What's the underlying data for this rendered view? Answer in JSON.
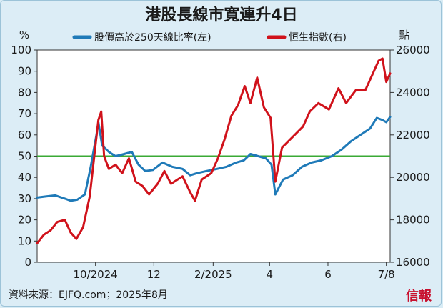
{
  "chart_data": {
    "type": "line",
    "title": "港股長線市寬連升4日",
    "source": "資料來源：EJFQ.com；2025年8月",
    "logo": "信報",
    "left_unit": "%",
    "right_unit": "點",
    "left_axis": {
      "min": 0,
      "max": 100,
      "ticks": [
        0,
        10,
        20,
        30,
        40,
        50,
        60,
        70,
        80,
        90,
        100
      ]
    },
    "right_axis": {
      "min": 16000,
      "max": 26000,
      "ticks": [
        16000,
        18000,
        20000,
        22000,
        24000,
        26000
      ]
    },
    "x_range": [
      "2024-08-01",
      "2025-08-05"
    ],
    "x_ticks": [
      {
        "date": "2024-10-01",
        "label": "10/2024"
      },
      {
        "date": "2024-12-01",
        "label": "12"
      },
      {
        "date": "2025-02-01",
        "label": "2/2025"
      },
      {
        "date": "2025-04-01",
        "label": "4"
      },
      {
        "date": "2025-06-01",
        "label": "6"
      },
      {
        "date": "2025-08-01",
        "label": "7/8"
      }
    ],
    "reference_line": {
      "value": 50,
      "axis": "left",
      "color": "#3aaa35"
    },
    "series": [
      {
        "name": "股價高於250天線比率(左)",
        "axis": "left",
        "color": "#1f7ab8",
        "points": [
          [
            "2024-08-01",
            30.5
          ],
          [
            "2024-08-10",
            31
          ],
          [
            "2024-08-20",
            31.5
          ],
          [
            "2024-08-30",
            30
          ],
          [
            "2024-09-05",
            29
          ],
          [
            "2024-09-12",
            29.5
          ],
          [
            "2024-09-20",
            32
          ],
          [
            "2024-09-26",
            45
          ],
          [
            "2024-10-02",
            60
          ],
          [
            "2024-10-04",
            66
          ],
          [
            "2024-10-08",
            55
          ],
          [
            "2024-10-15",
            52
          ],
          [
            "2024-10-22",
            50
          ],
          [
            "2024-10-31",
            51
          ],
          [
            "2024-11-08",
            52
          ],
          [
            "2024-11-15",
            46
          ],
          [
            "2024-11-22",
            43
          ],
          [
            "2024-11-30",
            43.5
          ],
          [
            "2024-12-10",
            47
          ],
          [
            "2024-12-20",
            45
          ],
          [
            "2024-12-31",
            44
          ],
          [
            "2025-01-08",
            41
          ],
          [
            "2025-01-15",
            42
          ],
          [
            "2025-01-25",
            43
          ],
          [
            "2025-02-05",
            44
          ],
          [
            "2025-02-15",
            45
          ],
          [
            "2025-02-25",
            47
          ],
          [
            "2025-03-05",
            48
          ],
          [
            "2025-03-12",
            51
          ],
          [
            "2025-03-20",
            50
          ],
          [
            "2025-03-28",
            49
          ],
          [
            "2025-04-03",
            46
          ],
          [
            "2025-04-07",
            32
          ],
          [
            "2025-04-15",
            39
          ],
          [
            "2025-04-25",
            41
          ],
          [
            "2025-05-05",
            45
          ],
          [
            "2025-05-15",
            47
          ],
          [
            "2025-05-25",
            48
          ],
          [
            "2025-06-05",
            50
          ],
          [
            "2025-06-15",
            53
          ],
          [
            "2025-06-25",
            57
          ],
          [
            "2025-07-05",
            60
          ],
          [
            "2025-07-15",
            63
          ],
          [
            "2025-07-22",
            68
          ],
          [
            "2025-07-28",
            67
          ],
          [
            "2025-08-01",
            66
          ],
          [
            "2025-08-05",
            68.5
          ]
        ]
      },
      {
        "name": "恒生指數(右)",
        "axis": "right",
        "color": "#d0121b",
        "points": [
          [
            "2024-08-01",
            16900
          ],
          [
            "2024-08-08",
            17300
          ],
          [
            "2024-08-15",
            17500
          ],
          [
            "2024-08-22",
            17900
          ],
          [
            "2024-08-30",
            18000
          ],
          [
            "2024-09-05",
            17400
          ],
          [
            "2024-09-11",
            17100
          ],
          [
            "2024-09-18",
            17650
          ],
          [
            "2024-09-25",
            19100
          ],
          [
            "2024-09-30",
            21100
          ],
          [
            "2024-10-04",
            22700
          ],
          [
            "2024-10-07",
            23100
          ],
          [
            "2024-10-10",
            21000
          ],
          [
            "2024-10-15",
            20400
          ],
          [
            "2024-10-22",
            20600
          ],
          [
            "2024-10-29",
            20200
          ],
          [
            "2024-11-05",
            20900
          ],
          [
            "2024-11-12",
            19800
          ],
          [
            "2024-11-19",
            19600
          ],
          [
            "2024-11-26",
            19200
          ],
          [
            "2024-12-05",
            19700
          ],
          [
            "2024-12-12",
            20300
          ],
          [
            "2024-12-19",
            19700
          ],
          [
            "2024-12-31",
            20050
          ],
          [
            "2025-01-08",
            19300
          ],
          [
            "2025-01-13",
            18900
          ],
          [
            "2025-01-20",
            19900
          ],
          [
            "2025-01-30",
            20200
          ],
          [
            "2025-02-06",
            20900
          ],
          [
            "2025-02-13",
            21800
          ],
          [
            "2025-02-20",
            22900
          ],
          [
            "2025-02-27",
            23400
          ],
          [
            "2025-03-06",
            24300
          ],
          [
            "2025-03-12",
            23500
          ],
          [
            "2025-03-19",
            24700
          ],
          [
            "2025-03-26",
            23300
          ],
          [
            "2025-04-02",
            22800
          ],
          [
            "2025-04-07",
            19800
          ],
          [
            "2025-04-14",
            21400
          ],
          [
            "2025-04-25",
            21900
          ],
          [
            "2025-05-06",
            22400
          ],
          [
            "2025-05-13",
            23100
          ],
          [
            "2025-05-22",
            23500
          ],
          [
            "2025-06-02",
            23200
          ],
          [
            "2025-06-12",
            24200
          ],
          [
            "2025-06-20",
            23500
          ],
          [
            "2025-06-30",
            24100
          ],
          [
            "2025-07-10",
            24100
          ],
          [
            "2025-07-17",
            24800
          ],
          [
            "2025-07-24",
            25500
          ],
          [
            "2025-07-28",
            25600
          ],
          [
            "2025-08-01",
            24500
          ],
          [
            "2025-08-05",
            24900
          ]
        ]
      }
    ]
  }
}
